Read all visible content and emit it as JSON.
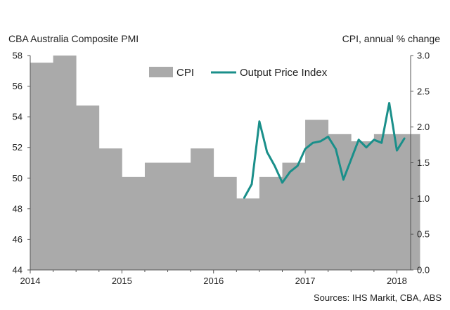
{
  "chart_data": {
    "type": "bar+line",
    "left_axis_label": "CBA Australia Composite  PMI",
    "right_axis_label": "CPI, annual  % change",
    "left_ylim": [
      44,
      58
    ],
    "left_ticks": [
      "44",
      "46",
      "48",
      "50",
      "52",
      "54",
      "56",
      "58"
    ],
    "right_ylim": [
      0,
      3
    ],
    "right_ticks": [
      "0.0",
      "0.5",
      "1.0",
      "1.5",
      "2.0",
      "2.5",
      "3.0"
    ],
    "x_ticks": [
      "2014",
      "2015",
      "2016",
      "2017",
      "2018"
    ],
    "legend": {
      "cpi": "CPI",
      "opi": "Output Price Index"
    },
    "source": "Sources: IHS Markit, CBA, ABS",
    "colors": {
      "bars": "#aaaaaa",
      "line": "#1a8f8a",
      "axis": "#555555"
    },
    "cpi_series": {
      "name": "CPI",
      "axis": "right",
      "quarters": [
        "2014 Q1",
        "2014 Q2",
        "2014 Q3",
        "2014 Q4",
        "2015 Q1",
        "2015 Q2",
        "2015 Q3",
        "2015 Q4",
        "2016 Q1",
        "2016 Q2",
        "2016 Q3",
        "2016 Q4",
        "2017 Q1",
        "2017 Q2",
        "2017 Q3",
        "2017 Q4",
        "2018 Q1"
      ],
      "values": [
        2.9,
        3.0,
        2.3,
        1.7,
        1.3,
        1.5,
        1.5,
        1.7,
        1.3,
        1.0,
        1.3,
        1.5,
        2.1,
        1.9,
        1.8,
        1.9,
        1.9
      ]
    },
    "opi_series": {
      "name": "Output Price Index",
      "axis": "left",
      "months": [
        "2016-05",
        "2016-06",
        "2016-07",
        "2016-08",
        "2016-09",
        "2016-10",
        "2016-11",
        "2016-12",
        "2017-01",
        "2017-02",
        "2017-03",
        "2017-04",
        "2017-05",
        "2017-06",
        "2017-07",
        "2017-08",
        "2017-09",
        "2017-10",
        "2017-11",
        "2017-12",
        "2018-01",
        "2018-02"
      ],
      "values": [
        48.7,
        49.6,
        53.7,
        51.7,
        50.8,
        49.7,
        50.4,
        50.8,
        51.9,
        52.3,
        52.4,
        52.7,
        51.9,
        49.9,
        51.2,
        52.5,
        52.0,
        52.5,
        52.3,
        54.9,
        51.8,
        52.6
      ]
    }
  }
}
